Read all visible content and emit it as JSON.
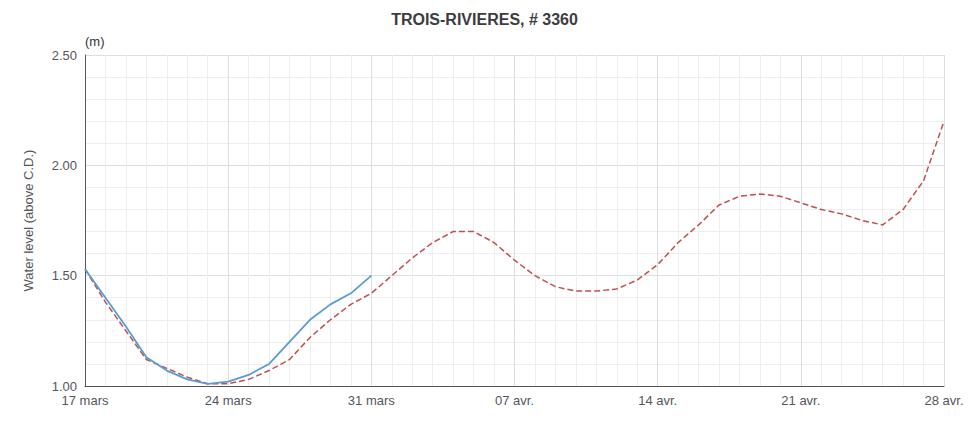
{
  "chart_data": {
    "type": "line",
    "title": "TROIS-RIVIERES, # 3360",
    "ylabel": "Water level (above C.D.)",
    "annotations": [
      "(m)"
    ],
    "xlim": [
      0,
      42
    ],
    "xticks": [
      {
        "value": 0,
        "label": "17 mars"
      },
      {
        "value": 7,
        "label": "24 mars"
      },
      {
        "value": 14,
        "label": "31 mars"
      },
      {
        "value": 21,
        "label": "07 avr."
      },
      {
        "value": 28,
        "label": "14 avr."
      },
      {
        "value": 35,
        "label": "21 avr."
      },
      {
        "value": 42,
        "label": "28 avr."
      }
    ],
    "ylim": [
      1.0,
      2.5
    ],
    "yticks": [
      {
        "value": 1.0,
        "label": "1.00"
      },
      {
        "value": 1.5,
        "label": "1.50"
      },
      {
        "value": 2.0,
        "label": "2.00"
      },
      {
        "value": 2.5,
        "label": "2.50"
      }
    ],
    "grid": true,
    "series": [
      {
        "color": "#C0504D",
        "line_style": "dashed",
        "x": [
          0,
          1,
          2,
          3,
          4,
          5,
          6,
          7,
          8,
          9,
          10,
          11,
          12,
          13,
          14,
          15,
          16,
          17,
          18,
          19,
          20,
          21,
          22,
          23,
          24,
          25,
          26,
          27,
          28,
          29,
          30,
          31,
          32,
          33,
          34,
          35,
          36,
          37,
          38,
          39,
          40,
          41,
          42
        ],
        "values": [
          1.53,
          1.38,
          1.25,
          1.12,
          1.08,
          1.04,
          1.01,
          1.01,
          1.03,
          1.07,
          1.12,
          1.22,
          1.3,
          1.37,
          1.42,
          1.5,
          1.58,
          1.65,
          1.7,
          1.7,
          1.65,
          1.57,
          1.5,
          1.45,
          1.43,
          1.43,
          1.44,
          1.48,
          1.55,
          1.65,
          1.73,
          1.82,
          1.86,
          1.87,
          1.86,
          1.83,
          1.8,
          1.78,
          1.75,
          1.73,
          1.8,
          1.93,
          2.2
        ]
      },
      {
        "color": "#5B9BD5",
        "line_style": "solid",
        "x": [
          0,
          1,
          2,
          3,
          4,
          5,
          6,
          7,
          8,
          9,
          10,
          11,
          12,
          13,
          14
        ],
        "values": [
          1.53,
          1.4,
          1.27,
          1.13,
          1.07,
          1.03,
          1.01,
          1.02,
          1.05,
          1.1,
          1.2,
          1.3,
          1.37,
          1.42,
          1.5
        ]
      }
    ]
  }
}
